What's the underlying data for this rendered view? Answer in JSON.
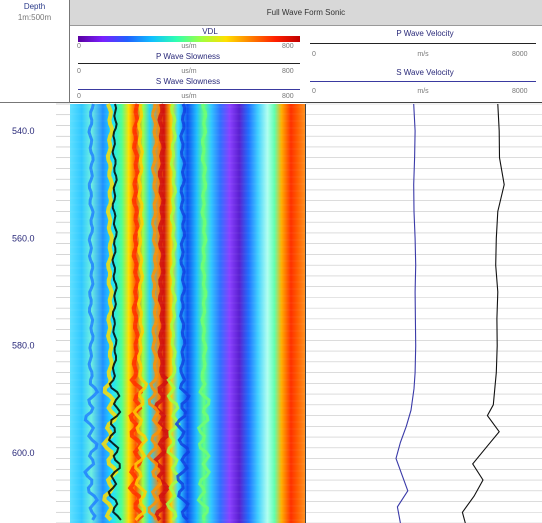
{
  "header": {
    "depth_title": "Depth",
    "depth_units": "1m:500m",
    "track_title": "Full Wave Form Sonic"
  },
  "left_track": {
    "vdl": {
      "label": "VDL",
      "min": "0",
      "units": "us/m",
      "max": "800"
    },
    "p_slowness": {
      "label": "P Wave Slowness",
      "min": "0",
      "units": "us/m",
      "max": "800"
    },
    "s_slowness": {
      "label": "S Wave Slowness",
      "min": "0",
      "units": "us/m",
      "max": "800"
    }
  },
  "right_track": {
    "p_velocity": {
      "label": "P Wave Velocity",
      "min": "0",
      "units": "m/s",
      "max": "8000"
    },
    "s_velocity": {
      "label": "S Wave Velocity",
      "min": "0",
      "units": "m/s",
      "max": "8000"
    }
  },
  "chart_data": {
    "type": "line",
    "depth_range": [
      535,
      613
    ],
    "depth_ticks": [
      "540.0",
      "560.0",
      "580.0",
      "600.0"
    ],
    "p_wave_velocity_scale": [
      0,
      8000
    ],
    "s_wave_velocity_scale": [
      0,
      8000
    ],
    "series": [
      {
        "name": "P Wave Velocity",
        "color": "#3a3aa8",
        "depth": [
          535,
          540,
          545,
          550,
          555,
          560,
          565,
          570,
          575,
          580,
          585,
          588,
          592,
          595,
          598,
          601,
          604,
          607,
          610,
          613
        ],
        "values": [
          3650,
          3700,
          3680,
          3650,
          3660,
          3700,
          3720,
          3700,
          3710,
          3720,
          3700,
          3660,
          3560,
          3400,
          3200,
          3050,
          3250,
          3450,
          3100,
          3200
        ]
      },
      {
        "name": "S Wave Velocity",
        "color": "#111111",
        "depth": [
          535,
          540,
          545,
          550,
          555,
          560,
          565,
          570,
          575,
          580,
          585,
          588,
          591,
          593,
          596,
          599,
          602,
          605,
          608,
          611,
          613
        ],
        "values": [
          6500,
          6550,
          6560,
          6720,
          6500,
          6450,
          6430,
          6500,
          6470,
          6480,
          6450,
          6400,
          6350,
          6150,
          6550,
          6100,
          5650,
          6000,
          5700,
          5300,
          5400
        ]
      }
    ],
    "vdl_colorscale": [
      "#5a00a0",
      "#2060ff",
      "#10c0ff",
      "#30ffb0",
      "#a0ff40",
      "#ffe000",
      "#ff8000",
      "#ff2000",
      "#c00000"
    ]
  }
}
